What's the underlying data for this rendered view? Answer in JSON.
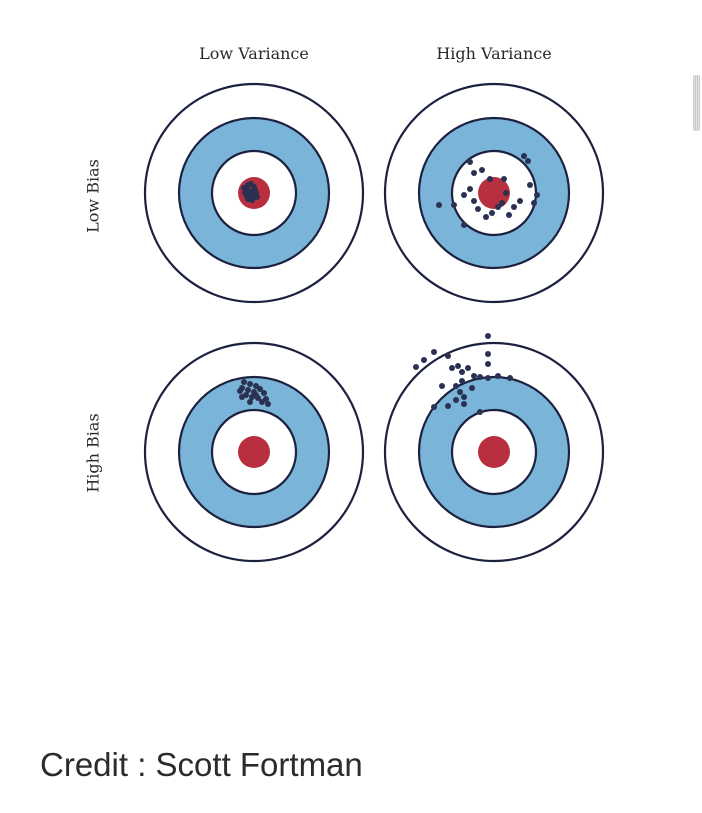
{
  "columns": [
    "Low Variance",
    "High Variance"
  ],
  "rows": [
    "Low Bias",
    "High Bias"
  ],
  "credit": "Credit : Scott Fortman",
  "colors": {
    "ring_outline": "#1c2140",
    "band": "#7ab4d8",
    "bullseye": "#b8303f",
    "dot": "#2b3150",
    "background": "#ffffff"
  },
  "targets": [
    {
      "row": "Low Bias",
      "column": "Low Variance",
      "spread": "tight",
      "aim": "center"
    },
    {
      "row": "Low Bias",
      "column": "High Variance",
      "spread": "scattered",
      "aim": "center"
    },
    {
      "row": "High Bias",
      "column": "Low Variance",
      "spread": "tight",
      "aim": "off-center"
    },
    {
      "row": "High Bias",
      "column": "High Variance",
      "spread": "scattered",
      "aim": "off-center"
    }
  ]
}
